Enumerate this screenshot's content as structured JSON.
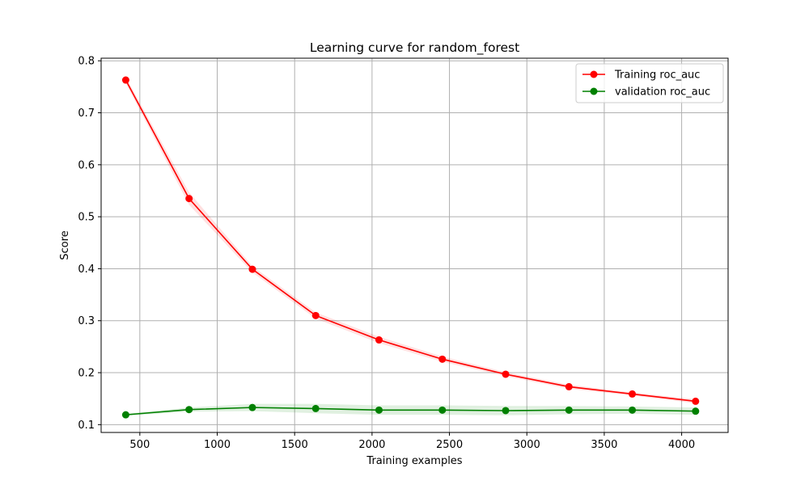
{
  "chart_data": {
    "type": "line",
    "title": "Learning curve for random_forest",
    "xlabel": "Training examples",
    "ylabel": "Score",
    "xlim": [
      250,
      4300
    ],
    "ylim": [
      0.085,
      0.805
    ],
    "xticks": [
      500,
      1000,
      1500,
      2000,
      2500,
      3000,
      3500,
      4000
    ],
    "yticks": [
      0.1,
      0.2,
      0.3,
      0.4,
      0.5,
      0.6,
      0.7,
      0.8
    ],
    "grid": true,
    "legend_position": "top-right",
    "x": [
      409,
      818,
      1227,
      1636,
      2045,
      2454,
      2863,
      3272,
      3681,
      4090
    ],
    "series": [
      {
        "name": "Training roc_auc",
        "color": "#ff0000",
        "band_color": "#ff0000",
        "values": [
          0.763,
          0.535,
          0.399,
          0.31,
          0.263,
          0.226,
          0.197,
          0.173,
          0.159,
          0.145
        ],
        "std": [
          0.006,
          0.012,
          0.006,
          0.006,
          0.006,
          0.005,
          0.004,
          0.004,
          0.003,
          0.004
        ]
      },
      {
        "name": "validation roc_auc",
        "color": "#008000",
        "band_color": "#008000",
        "values": [
          0.119,
          0.129,
          0.133,
          0.131,
          0.128,
          0.128,
          0.127,
          0.128,
          0.128,
          0.126
        ],
        "std": [
          0.002,
          0.004,
          0.007,
          0.009,
          0.009,
          0.009,
          0.009,
          0.008,
          0.007,
          0.007
        ]
      }
    ]
  }
}
